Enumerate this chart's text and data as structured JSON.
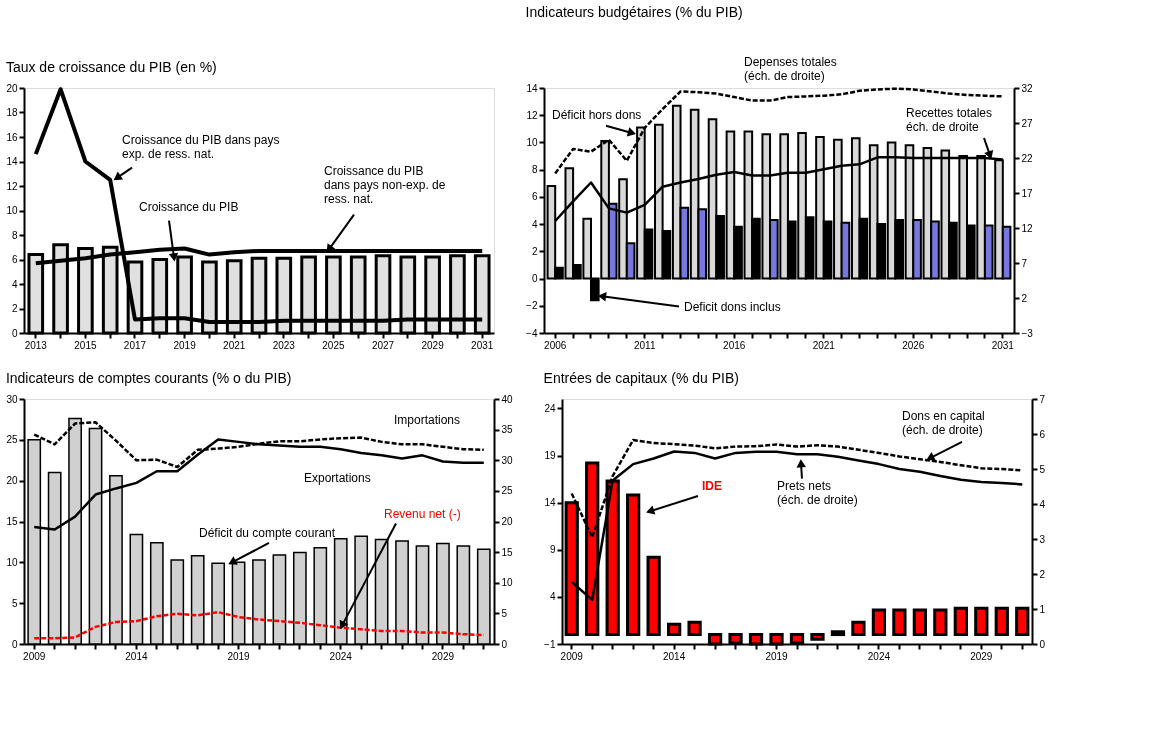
{
  "chart_data": [
    {
      "type": "bar",
      "title": "Taux de croissance du PIB (en %)",
      "categories": [
        "2013",
        null,
        "2015",
        null,
        "2017",
        null,
        "2019",
        null,
        "2021",
        null,
        "2023",
        null,
        "2025",
        null,
        "2027",
        null,
        "2029",
        null,
        "2031"
      ],
      "ylim": [
        0,
        20
      ],
      "yticks": [
        0,
        2,
        4,
        6,
        8,
        10,
        12,
        14,
        16,
        18,
        20
      ],
      "series": [
        {
          "name": "Croissance du PIB",
          "color": "#e0e0e0",
          "values": [
            6.4,
            7.2,
            6.9,
            7.0,
            5.8,
            6.0,
            6.2,
            5.8,
            5.9,
            6.1,
            6.1,
            6.2,
            6.2,
            6.2,
            6.3,
            6.2,
            6.2,
            6.3,
            6.3
          ]
        },
        {
          "name": "Croissance du PIB dans pays\nexp. de ress. nat.",
          "type": "line",
          "color": "#000000",
          "line_style": "solid",
          "values": [
            14.6,
            19.9,
            14.0,
            12.5,
            1.1,
            1.2,
            1.2,
            0.9,
            0.9,
            0.9,
            1.0,
            1.0,
            1.0,
            1.0,
            1.0,
            1.1,
            1.1,
            1.1,
            1.1
          ]
        },
        {
          "name": "Croissance du PIB\ndans pays non-exp. de\nress. nat.",
          "type": "line",
          "color": "#000000",
          "line_style": "solid",
          "values": [
            5.7,
            5.9,
            6.1,
            6.4,
            6.6,
            6.8,
            6.9,
            6.4,
            6.6,
            6.7,
            6.7,
            6.7,
            6.7,
            6.7,
            6.7,
            6.7,
            6.7,
            6.7,
            6.7
          ]
        }
      ]
    },
    {
      "type": "bar",
      "title": "Indicateurs budgétaires (% du PIB)",
      "categories": [
        "2006",
        null,
        null,
        null,
        null,
        "2011",
        null,
        null,
        null,
        null,
        "2016",
        null,
        null,
        null,
        null,
        "2021",
        null,
        null,
        null,
        null,
        "2026",
        null,
        null,
        null,
        null,
        "2031"
      ],
      "ylim": [
        -4,
        14
      ],
      "yticks": [
        -4,
        -2,
        0,
        2,
        4,
        6,
        8,
        10,
        12,
        14
      ],
      "y2lim": [
        -3,
        32
      ],
      "y2ticks": [
        -3,
        2,
        7,
        12,
        17,
        22,
        27,
        32
      ],
      "series": [
        {
          "name": "Déficit hors dons",
          "color": "#d9d9d9",
          "values": [
            6.8,
            8.1,
            4.4,
            10.1,
            7.3,
            11.1,
            11.3,
            12.7,
            12.4,
            11.7,
            10.8,
            10.8,
            10.6,
            10.6,
            10.7,
            10.4,
            10.2,
            10.3,
            9.8,
            10.0,
            9.8,
            9.6,
            9.4,
            9.0,
            9.0,
            8.7
          ]
        },
        {
          "name": "Deficit dons inclus",
          "colors": [
            "#000000",
            "#000000",
            "#000000",
            "#7777dd",
            "#7777dd",
            "#000000",
            "#000000",
            "#7777dd",
            "#7777dd",
            "#000000",
            "#000000",
            "#000000",
            "#7777dd",
            "#000000",
            "#000000",
            "#000000",
            "#7777dd",
            "#000000",
            "#000000",
            "#000000",
            "#7777dd",
            "#7777dd",
            "#000000",
            "#000000",
            "#7777dd",
            "#7777dd"
          ],
          "values": [
            0.8,
            1.0,
            -1.6,
            5.5,
            2.6,
            3.6,
            3.5,
            5.2,
            5.1,
            4.6,
            3.8,
            4.4,
            4.3,
            4.2,
            4.5,
            4.2,
            4.1,
            4.4,
            4.0,
            4.3,
            4.3,
            4.2,
            4.1,
            3.9,
            3.9,
            3.8
          ]
        },
        {
          "name": "Depenses totales\n(éch. de droite)",
          "type": "line",
          "axis": "y2",
          "color": "#000000",
          "line_style": "dashed",
          "values": [
            19.8,
            23.3,
            22.9,
            24.6,
            21.6,
            26.3,
            29.0,
            31.5,
            31.4,
            31.2,
            30.7,
            30.2,
            30.2,
            30.7,
            30.8,
            30.9,
            31.1,
            31.6,
            31.8,
            31.9,
            31.8,
            31.5,
            31.2,
            31.0,
            30.9,
            30.8
          ]
        },
        {
          "name": "Recettes totales\néch. de droite",
          "type": "line",
          "axis": "y2",
          "color": "#000000",
          "line_style": "solid",
          "values": [
            13.0,
            15.8,
            18.5,
            14.8,
            14.2,
            15.3,
            17.9,
            18.5,
            19.0,
            19.6,
            20.0,
            19.5,
            19.5,
            19.9,
            19.9,
            20.4,
            20.9,
            21.1,
            22.1,
            22.1,
            22.0,
            22.0,
            22.0,
            22.0,
            22.0,
            21.8
          ]
        }
      ]
    },
    {
      "type": "bar",
      "title": "Indicateurs de comptes courants (% o du PIB)",
      "categories": [
        "2009",
        null,
        null,
        null,
        null,
        "2014",
        null,
        null,
        null,
        null,
        "2019",
        null,
        null,
        null,
        null,
        "2024",
        null,
        null,
        null,
        null,
        "2029",
        null,
        null
      ],
      "ylim": [
        0,
        30
      ],
      "yticks": [
        0,
        5,
        10,
        15,
        20,
        25,
        30
      ],
      "y2lim": [
        0,
        40
      ],
      "y2ticks": [
        0,
        5,
        10,
        15,
        20,
        25,
        30,
        35,
        40
      ],
      "series": [
        {
          "name": "Déficit du compte courant",
          "color": "#d0d0d0",
          "values": [
            25.0,
            21.0,
            27.6,
            26.4,
            20.6,
            13.4,
            12.4,
            10.3,
            10.8,
            9.9,
            10.0,
            10.3,
            10.9,
            11.2,
            11.8,
            12.9,
            13.2,
            12.8,
            12.6,
            12.0,
            12.3,
            12.0,
            11.6
          ]
        },
        {
          "name": "Importations",
          "type": "line",
          "axis": "y2",
          "color": "#000000",
          "line_style": "dashed",
          "values": [
            34.2,
            32.6,
            36.0,
            36.2,
            33.2,
            30.0,
            30.1,
            28.9,
            31.7,
            31.9,
            32.2,
            32.7,
            33.1,
            33.1,
            33.4,
            33.6,
            33.7,
            33.0,
            32.6,
            32.6,
            32.2,
            31.8,
            31.7
          ]
        },
        {
          "name": "Exportations",
          "type": "line",
          "axis": "y2",
          "color": "#000000",
          "line_style": "solid",
          "values": [
            19.1,
            18.7,
            20.8,
            24.4,
            25.4,
            26.3,
            28.2,
            28.2,
            30.9,
            33.4,
            33.0,
            32.6,
            32.4,
            32.2,
            32.2,
            31.8,
            31.2,
            30.8,
            30.3,
            30.8,
            29.8,
            29.6,
            29.6
          ]
        },
        {
          "name": "Revenu net (-)",
          "type": "line",
          "color": "#ff0000",
          "line_style": "dashed",
          "values": [
            0.7,
            0.7,
            0.8,
            2.1,
            2.7,
            2.8,
            3.4,
            3.7,
            3.5,
            3.9,
            3.3,
            3.0,
            2.8,
            2.6,
            2.3,
            2.0,
            1.8,
            1.6,
            1.6,
            1.4,
            1.4,
            1.2,
            1.1
          ]
        }
      ]
    },
    {
      "type": "bar",
      "title": "Entrées de capitaux (% du PIB)",
      "categories": [
        "2009",
        null,
        null,
        null,
        null,
        "2014",
        null,
        null,
        null,
        null,
        "2019",
        null,
        null,
        null,
        null,
        "2024",
        null,
        null,
        null,
        null,
        "2029",
        null,
        null
      ],
      "ylim": [
        -1,
        25
      ],
      "yticks": [
        -1,
        4,
        9,
        14,
        19,
        24
      ],
      "y2lim": [
        0,
        7
      ],
      "y2ticks": [
        0,
        1,
        2,
        3,
        4,
        5,
        6,
        7
      ],
      "series": [
        {
          "name": "IDE",
          "color": "#ff0000",
          "values": [
            14.0,
            18.2,
            16.3,
            14.8,
            8.2,
            1.1,
            1.3,
            -1.0,
            -0.9,
            -1.0,
            -1.0,
            -0.9,
            -0.5,
            0.3,
            1.3,
            2.6,
            2.6,
            2.6,
            2.6,
            2.8,
            2.8,
            2.8,
            2.8
          ]
        },
        {
          "name": "Dons en capital\n(éch. de droite)",
          "type": "line",
          "axis": "y2",
          "color": "#000000",
          "line_style": "dashed",
          "values": [
            4.3,
            3.05,
            4.8,
            5.83,
            5.74,
            5.71,
            5.67,
            5.59,
            5.64,
            5.65,
            5.7,
            5.64,
            5.68,
            5.64,
            5.55,
            5.46,
            5.36,
            5.28,
            5.2,
            5.11,
            5.02,
            5.0,
            4.96
          ]
        },
        {
          "name": "Prets nets\n(éch. de droite)",
          "type": "line",
          "axis": "y2",
          "color": "#000000",
          "line_style": "solid",
          "values": [
            1.77,
            1.26,
            4.67,
            5.14,
            5.3,
            5.5,
            5.46,
            5.3,
            5.46,
            5.49,
            5.49,
            5.42,
            5.42,
            5.35,
            5.24,
            5.14,
            5.0,
            4.92,
            4.8,
            4.69,
            4.63,
            4.6,
            4.56
          ]
        }
      ]
    }
  ]
}
